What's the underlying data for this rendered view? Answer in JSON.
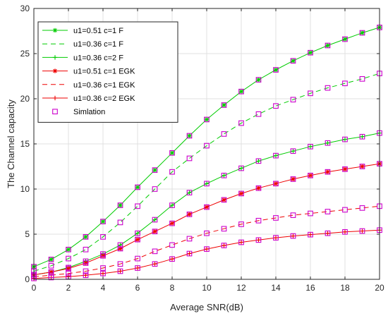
{
  "chart_data": {
    "type": "line",
    "xlabel": "Average SNR(dB)",
    "ylabel": "The Channel capacity",
    "xlim": [
      0,
      20
    ],
    "ylim": [
      0,
      30
    ],
    "xticks": [
      0,
      2,
      4,
      6,
      8,
      10,
      12,
      14,
      16,
      18,
      20
    ],
    "yticks": [
      0,
      5,
      10,
      15,
      20,
      25,
      30
    ],
    "grid": true,
    "legend_position": "top-left",
    "x": [
      0,
      1,
      2,
      3,
      4,
      5,
      6,
      7,
      8,
      9,
      10,
      11,
      12,
      13,
      14,
      15,
      16,
      17,
      18,
      19,
      20
    ],
    "series": [
      {
        "name": "u1=0.51 c=1 F",
        "color": "#00cc00",
        "dash": "solid",
        "marker": "star",
        "values": [
          1.4,
          2.2,
          3.3,
          4.7,
          6.4,
          8.2,
          10.2,
          12.1,
          14.0,
          15.9,
          17.7,
          19.3,
          20.8,
          22.1,
          23.2,
          24.2,
          25.1,
          25.9,
          26.6,
          27.3,
          27.9
        ]
      },
      {
        "name": "u1=0.36 c=1 F",
        "color": "#00cc00",
        "dash": "dashed",
        "marker": "none",
        "values": [
          0.9,
          1.5,
          2.3,
          3.3,
          4.7,
          6.3,
          8.1,
          10.0,
          11.9,
          13.4,
          14.8,
          16.1,
          17.3,
          18.3,
          19.2,
          19.9,
          20.6,
          21.2,
          21.7,
          22.2,
          22.8
        ]
      },
      {
        "name": "u1=0.36  c=2 F",
        "color": "#00cc00",
        "dash": "solid",
        "marker": "plus",
        "values": [
          0.5,
          0.8,
          1.3,
          2.0,
          2.8,
          3.8,
          5.1,
          6.6,
          8.2,
          9.6,
          10.6,
          11.5,
          12.3,
          13.1,
          13.7,
          14.2,
          14.7,
          15.1,
          15.5,
          15.8,
          16.2
        ]
      },
      {
        "name": "u1=0.51 c=1 EGK",
        "color": "#ee0000",
        "dash": "solid",
        "marker": "star",
        "values": [
          0.5,
          0.8,
          1.2,
          1.8,
          2.6,
          3.4,
          4.4,
          5.3,
          6.2,
          7.2,
          8.0,
          8.8,
          9.5,
          10.1,
          10.6,
          11.1,
          11.5,
          11.9,
          12.2,
          12.5,
          12.8
        ]
      },
      {
        "name": "u1=0.36 c=1 EGK",
        "color": "#ee0000",
        "dash": "dashed",
        "marker": "none",
        "values": [
          0.3,
          0.45,
          0.65,
          0.9,
          1.25,
          1.7,
          2.3,
          3.1,
          3.8,
          4.5,
          5.1,
          5.6,
          6.1,
          6.5,
          6.8,
          7.1,
          7.3,
          7.5,
          7.7,
          7.9,
          8.1
        ]
      },
      {
        "name": "u1=0.36 c=2 EGK",
        "color": "#ee0000",
        "dash": "solid",
        "marker": "plus",
        "values": [
          0.1,
          0.2,
          0.3,
          0.45,
          0.65,
          0.9,
          1.25,
          1.7,
          2.25,
          2.85,
          3.35,
          3.75,
          4.1,
          4.35,
          4.6,
          4.8,
          4.95,
          5.1,
          5.25,
          5.35,
          5.45
        ]
      }
    ],
    "simulation": {
      "name": "Simlation",
      "color": "#cc00cc",
      "marker": "square",
      "series_indices": [
        0,
        1,
        2,
        3,
        4,
        5
      ]
    }
  }
}
